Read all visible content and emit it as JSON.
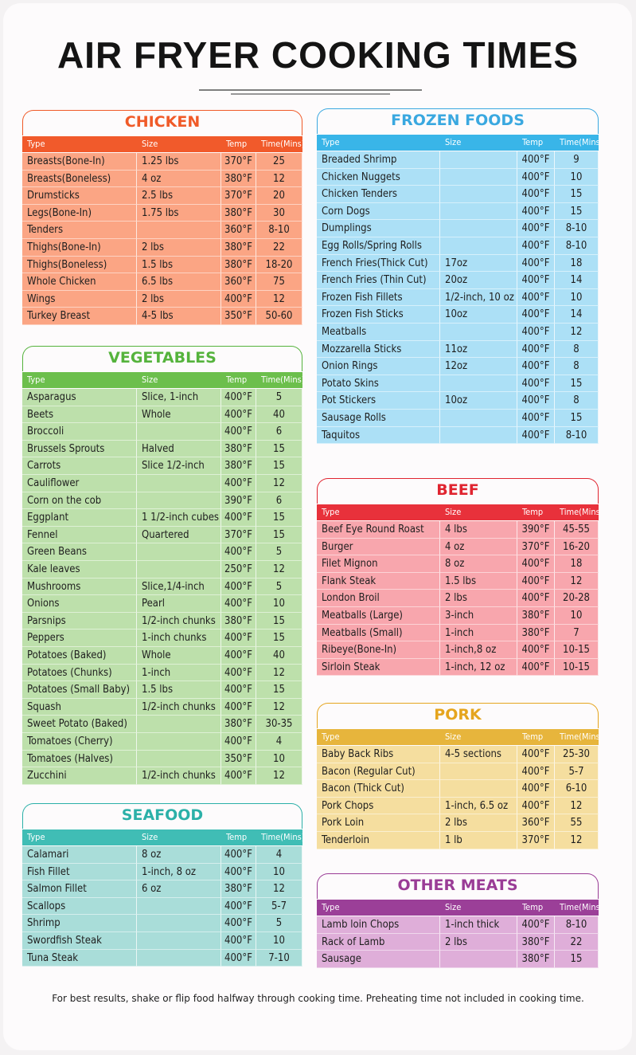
{
  "title": "AIR FRYER COOKING TIMES",
  "sections": [
    {
      "name": "CHICKEN",
      "columns": [
        "Type",
        "Size",
        "Temp",
        "Time(Mins)"
      ],
      "rows": [
        [
          "Breasts(Bone-In)",
          "1.25 lbs",
          "370°F",
          "25"
        ],
        [
          "Breasts(Boneless)",
          "4 oz",
          "380°F",
          "12"
        ],
        [
          "Drumsticks",
          "2.5 lbs",
          "370°F",
          "20"
        ],
        [
          "Legs(Bone-In)",
          "1.75 lbs",
          "380°F",
          "30"
        ],
        [
          "Tenders",
          null,
          "360°F",
          "8-10"
        ],
        [
          "Thighs(Bone-In)",
          "2 lbs",
          "380°F",
          "22"
        ],
        [
          "Thighs(Boneless)",
          "1.5 lbs",
          "380°F",
          "18-20"
        ],
        [
          "Whole Chicken",
          "6.5 lbs",
          "360°F",
          "75"
        ],
        [
          "Wings",
          "2 lbs",
          "400°F",
          "12"
        ],
        [
          "Turkey Breast",
          "4-5 lbs",
          "350°F",
          "50-60"
        ]
      ]
    },
    {
      "name": "VEGETABLES",
      "columns": [
        "Type",
        "Size",
        "Temp",
        "Time(Mins)"
      ],
      "rows": [
        [
          "Asparagus",
          "Slice, 1-inch",
          "400°F",
          "5"
        ],
        [
          "Beets",
          "Whole",
          "400°F",
          "40"
        ],
        [
          "Broccoli",
          null,
          "400°F",
          "6"
        ],
        [
          "Brussels Sprouts",
          "Halved",
          "380°F",
          "15"
        ],
        [
          "Carrots",
          "Slice 1/2-inch",
          "380°F",
          "15"
        ],
        [
          "Cauliflower",
          null,
          "400°F",
          "12"
        ],
        [
          "Corn on the cob",
          null,
          "390°F",
          "6"
        ],
        [
          "Eggplant",
          "1 1/2-inch cubes",
          "400°F",
          "15"
        ],
        [
          "Fennel",
          "Quartered",
          "370°F",
          "15"
        ],
        [
          "Green Beans",
          null,
          "400°F",
          "5"
        ],
        [
          "Kale leaves",
          null,
          "250°F",
          "12"
        ],
        [
          "Mushrooms",
          "Slice,1/4-inch",
          "400°F",
          "5"
        ],
        [
          "Onions",
          "Pearl",
          "400°F",
          "10"
        ],
        [
          "Parsnips",
          "1/2-inch chunks",
          "380°F",
          "15"
        ],
        [
          "Peppers",
          "1-inch chunks",
          "400°F",
          "15"
        ],
        [
          "Potatoes (Baked)",
          "Whole",
          "400°F",
          "40"
        ],
        [
          "Potatoes (Chunks)",
          "1-inch",
          "400°F",
          "12"
        ],
        [
          "Potatoes (Small Baby)",
          "1.5 lbs",
          "400°F",
          "15"
        ],
        [
          "Squash",
          "1/2-inch chunks",
          "400°F",
          "12"
        ],
        [
          "Sweet Potato (Baked)",
          null,
          "380°F",
          "30-35"
        ],
        [
          "Tomatoes (Cherry)",
          null,
          "400°F",
          "4"
        ],
        [
          "Tomatoes (Halves)",
          null,
          "350°F",
          "10"
        ],
        [
          "Zucchini",
          "1/2-inch chunks",
          "400°F",
          "12"
        ]
      ]
    },
    {
      "name": "SEAFOOD",
      "columns": [
        "Type",
        "Size",
        "Temp",
        "Time(Mins)"
      ],
      "rows": [
        [
          "Calamari",
          "8 oz",
          "400°F",
          "4"
        ],
        [
          "Fish Fillet",
          "1-inch, 8 oz",
          "400°F",
          "10"
        ],
        [
          "Salmon Fillet",
          "6 oz",
          "380°F",
          "12"
        ],
        [
          "Scallops",
          null,
          "400°F",
          "5-7"
        ],
        [
          "Shrimp",
          null,
          "400°F",
          "5"
        ],
        [
          "Swordfish Steak",
          null,
          "400°F",
          "10"
        ],
        [
          "Tuna Steak",
          null,
          "400°F",
          "7-10"
        ]
      ]
    },
    {
      "name": "FROZEN FOODS",
      "columns": [
        "Type",
        "Size",
        "Temp",
        "Time(Mins)"
      ],
      "rows": [
        [
          "Breaded Shrimp",
          null,
          "400°F",
          "9"
        ],
        [
          "Chicken Nuggets",
          null,
          "400°F",
          "10"
        ],
        [
          "Chicken Tenders",
          null,
          "400°F",
          "15"
        ],
        [
          "Corn Dogs",
          null,
          "400°F",
          "15"
        ],
        [
          "Dumplings",
          null,
          "400°F",
          "8-10"
        ],
        [
          "Egg Rolls/Spring Rolls",
          null,
          "400°F",
          "8-10"
        ],
        [
          "French Fries(Thick Cut)",
          "17oz",
          "400°F",
          "18"
        ],
        [
          "French Fries (Thin Cut)",
          "20oz",
          "400°F",
          "14"
        ],
        [
          "Frozen Fish Fillets",
          "1/2-inch, 10 oz",
          "400°F",
          "10"
        ],
        [
          "Frozen Fish Sticks",
          "10oz",
          "400°F",
          "14"
        ],
        [
          "Meatballs",
          null,
          "400°F",
          "12"
        ],
        [
          "Mozzarella Sticks",
          "11oz",
          "400°F",
          "8"
        ],
        [
          "Onion Rings",
          "12oz",
          "400°F",
          "8"
        ],
        [
          "Potato Skins",
          null,
          "400°F",
          "15"
        ],
        [
          "Pot Stickers",
          "10oz",
          "400°F",
          "8"
        ],
        [
          "Sausage Rolls",
          null,
          "400°F",
          "15"
        ],
        [
          "Taquitos",
          null,
          "400°F",
          "8-10"
        ]
      ]
    },
    {
      "name": "BEEF",
      "columns": [
        "Type",
        "Size",
        "Temp",
        "Time(Mins)"
      ],
      "rows": [
        [
          "Beef Eye Round Roast",
          "4 lbs",
          "390°F",
          "45-55"
        ],
        [
          "Burger",
          "4 oz",
          "370°F",
          "16-20"
        ],
        [
          "Filet Mignon",
          "8 oz",
          "400°F",
          "18"
        ],
        [
          "Flank Steak",
          "1.5 lbs",
          "400°F",
          "12"
        ],
        [
          "London Broil",
          "2 lbs",
          "400°F",
          "20-28"
        ],
        [
          "Meatballs (Large)",
          "3-inch",
          "380°F",
          "10"
        ],
        [
          "Meatballs (Small)",
          "1-inch",
          "380°F",
          "7"
        ],
        [
          "Ribeye(Bone-In)",
          "1-inch,8 oz",
          "400°F",
          "10-15"
        ],
        [
          "Sirloin Steak",
          "1-inch, 12 oz",
          "400°F",
          "10-15"
        ]
      ]
    },
    {
      "name": "PORK",
      "columns": [
        "Type",
        "Size",
        "Temp",
        "Time(Mins)"
      ],
      "rows": [
        [
          "Baby Back Ribs",
          "4-5 sections",
          "400°F",
          "25-30"
        ],
        [
          "Bacon (Regular Cut)",
          null,
          "400°F",
          "5-7"
        ],
        [
          "Bacon (Thick Cut)",
          null,
          "400°F",
          "6-10"
        ],
        [
          "Pork Chops",
          "1-inch, 6.5 oz",
          "400°F",
          "12"
        ],
        [
          "Pork Loin",
          "2 lbs",
          "360°F",
          "55"
        ],
        [
          "Tenderloin",
          "1 lb",
          "370°F",
          "12"
        ]
      ]
    },
    {
      "name": "OTHER MEATS",
      "columns": [
        "Type",
        "Size",
        "Temp",
        "Time(Mins)"
      ],
      "rows": [
        [
          "Lamb loin Chops",
          "1-inch thick",
          "400°F",
          "8-10"
        ],
        [
          "Rack of Lamb",
          "2 lbs",
          "380°F",
          "22"
        ],
        [
          "Sausage",
          null,
          "380°F",
          "15"
        ]
      ]
    }
  ],
  "footer": "For best results, shake or flip food halfway through cooking time. Preheating time not included in cooking time."
}
